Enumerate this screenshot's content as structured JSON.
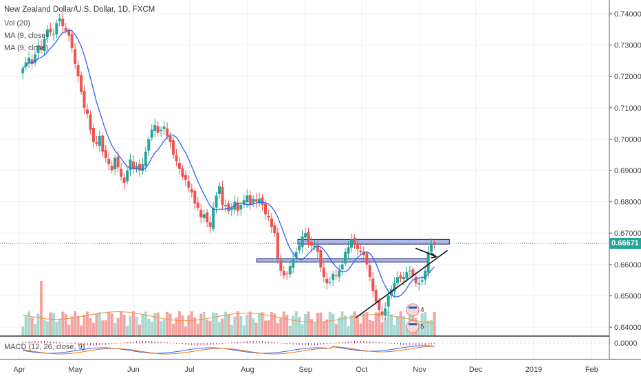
{
  "title": "New Zealand Dollar/U.S. Dollar, 1D, FXCM",
  "indicators": [
    "Vol (20)",
    "MA (9, close)",
    "MA (9, close)"
  ],
  "macd_label": "MACD (12, 26, close, 9)",
  "last_price": "0.66671",
  "colors": {
    "up": "#26a69a",
    "down": "#ef5350",
    "ma": "#2962ff",
    "zone": "#6b7fd7",
    "vol_ma": "#f0923a"
  },
  "chart_data": {
    "type": "candlestick",
    "title": "New Zealand Dollar/U.S. Dollar, 1D, FXCM",
    "price_axis": {
      "ticks": [
        "0.74000",
        "0.73000",
        "0.72000",
        "0.71000",
        "0.70000",
        "0.69000",
        "0.68000",
        "0.67000",
        "0.66000",
        "0.65000",
        "0.64000"
      ],
      "range": [
        0.6365,
        0.7435
      ]
    },
    "macd_axis": {
      "ticks": [
        "0.0000"
      ]
    },
    "time_axis": {
      "labels": [
        "Apr",
        "May",
        "Jun",
        "Jul",
        "Aug",
        "Sep",
        "Oct",
        "Nov",
        "Dec",
        "2019",
        "Feb"
      ],
      "label_days": [
        0,
        30,
        61,
        91,
        122,
        153,
        183,
        214,
        244,
        275,
        306
      ],
      "start": "Apr 1, 2018"
    },
    "series": [
      {
        "name": "Vol (20)",
        "kind": "volume"
      },
      {
        "name": "MA (9, close)",
        "kind": "moving average"
      },
      {
        "name": "MACD (12, 26, close, 9)",
        "kind": "macd"
      }
    ],
    "closes": [
      0.7225,
      0.7245,
      0.726,
      0.724,
      0.727,
      0.73,
      0.7285,
      0.732,
      0.735,
      0.734,
      0.7335,
      0.737,
      0.7385,
      0.736,
      0.7345,
      0.733,
      0.729,
      0.724,
      0.72,
      0.715,
      0.71,
      0.708,
      0.703,
      0.699,
      0.6985,
      0.701,
      0.696,
      0.694,
      0.692,
      0.69,
      0.694,
      0.691,
      0.688,
      0.686,
      0.69,
      0.6935,
      0.6905,
      0.6915,
      0.69,
      0.692,
      0.696,
      0.7,
      0.703,
      0.7045,
      0.702,
      0.703,
      0.704,
      0.701,
      0.699,
      0.695,
      0.693,
      0.6905,
      0.688,
      0.687,
      0.6845,
      0.683,
      0.6795,
      0.678,
      0.675,
      0.676,
      0.6735,
      0.672,
      0.678,
      0.682,
      0.685,
      0.679,
      0.679,
      0.677,
      0.678,
      0.68,
      0.677,
      0.679,
      0.6805,
      0.682,
      0.679,
      0.681,
      0.68,
      0.681,
      0.679,
      0.676,
      0.675,
      0.672,
      0.67,
      0.662,
      0.658,
      0.6565,
      0.657,
      0.6595,
      0.662,
      0.664,
      0.666,
      0.669,
      0.67,
      0.667,
      0.666,
      0.666,
      0.664,
      0.659,
      0.656,
      0.654,
      0.6545,
      0.657,
      0.6565,
      0.658,
      0.66,
      0.664,
      0.6655,
      0.668,
      0.6665,
      0.665,
      0.664,
      0.663,
      0.66,
      0.656,
      0.6515,
      0.648,
      0.6455,
      0.644,
      0.646,
      0.65,
      0.652,
      0.654,
      0.656,
      0.6555,
      0.656,
      0.6575,
      0.658,
      0.6565,
      0.654,
      0.654,
      0.655,
      0.658,
      0.664,
      0.6665,
      0.667
    ],
    "ma_label": "MA (9, close)",
    "annotations": [
      {
        "type": "resistance_zone",
        "from": 0.6665,
        "to": 0.668,
        "days": [
          157,
          238
        ]
      },
      {
        "type": "support_zone",
        "from": 0.6608,
        "to": 0.6618,
        "days": [
          135,
          227
        ]
      },
      {
        "type": "trendline",
        "from": [
          188,
          0.643
        ],
        "to": [
          237,
          0.6645
        ]
      },
      {
        "type": "arrow",
        "from": [
          220,
          0.6652
        ],
        "to": [
          231,
          0.6625
        ]
      }
    ],
    "event_badges": [
      {
        "label": "4",
        "day": 214,
        "price": 0.6455
      },
      {
        "label": "5",
        "day": 214,
        "price": 0.6415
      }
    ],
    "grid": true
  }
}
